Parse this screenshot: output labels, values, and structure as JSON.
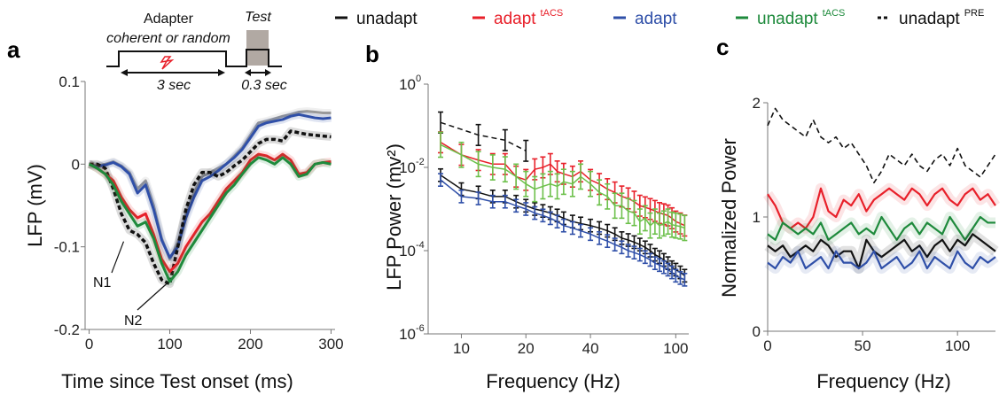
{
  "legend": [
    {
      "name": "unadapt",
      "sup": "",
      "color": "#111111",
      "dash": false
    },
    {
      "name": "adapt",
      "sup": "tACS",
      "color": "#e8202a",
      "dash": false
    },
    {
      "name": "adapt",
      "sup": "",
      "color": "#2f4fa8",
      "dash": false
    },
    {
      "name": "unadapt",
      "sup": "tACS",
      "color": "#1e8a3c",
      "dash": false
    },
    {
      "name": "unadapt",
      "sup": "PRE",
      "color": "#111111",
      "dash": true
    }
  ],
  "colors": {
    "unadapt": "#111111",
    "adapt_tacs": "#e8202a",
    "adapt": "#2f4fa8",
    "unadapt_tacs": "#1e8a3c",
    "unadapt_pre": "#111111",
    "green_bars": "#6cc04a",
    "grey_trace": "#9a9a9a",
    "test_box": "#b1a9a3"
  },
  "schematic": {
    "adapter_label": "Adapter",
    "adapter_sublabel": "coherent or random",
    "test_label": "Test",
    "adapter_duration": "3 sec",
    "test_duration": "0.3 sec",
    "stim_icon": "lightning-bolt-icon"
  },
  "chart_data": [
    {
      "panel": "a",
      "type": "line",
      "xlabel": "Time since Test onset (ms)",
      "ylabel": "LFP (mV)",
      "xlim": [
        -5,
        305
      ],
      "ylim": [
        -0.2,
        0.1
      ],
      "xticks": [
        0,
        100,
        200,
        300
      ],
      "yticks": [
        -0.2,
        -0.1,
        0,
        0.1
      ],
      "ytick_labels": [
        "-0.2",
        "-0.1",
        "0",
        "0.1"
      ],
      "annotations": [
        "N1",
        "N2"
      ],
      "annotation_points": [
        [
          45,
          -0.085
        ],
        [
          100,
          -0.14
        ]
      ],
      "x": [
        0,
        10,
        20,
        30,
        40,
        50,
        60,
        70,
        80,
        90,
        100,
        110,
        120,
        130,
        140,
        150,
        160,
        170,
        180,
        190,
        200,
        210,
        220,
        230,
        240,
        250,
        260,
        270,
        280,
        290,
        300
      ],
      "series": [
        {
          "key": "grey_trace",
          "values": [
            0.0,
            -0.002,
            0.0,
            0.003,
            -0.002,
            -0.01,
            -0.03,
            -0.02,
            -0.05,
            -0.09,
            -0.115,
            -0.095,
            -0.06,
            -0.035,
            -0.015,
            -0.01,
            -0.005,
            0.0,
            0.01,
            0.02,
            0.035,
            0.05,
            0.052,
            0.055,
            0.058,
            0.06,
            0.063,
            0.064,
            0.063,
            0.062,
            0.062
          ]
        },
        {
          "key": "adapt",
          "values": [
            0.0,
            -0.003,
            -0.001,
            0.002,
            -0.003,
            -0.012,
            -0.035,
            -0.025,
            -0.055,
            -0.092,
            -0.113,
            -0.1,
            -0.065,
            -0.04,
            -0.02,
            -0.015,
            -0.008,
            0.0,
            0.008,
            0.018,
            0.032,
            0.046,
            0.05,
            0.052,
            0.054,
            0.058,
            0.06,
            0.058,
            0.056,
            0.055,
            0.056
          ]
        },
        {
          "key": "unadapt_pre",
          "values": [
            0.0,
            0.0,
            -0.005,
            -0.03,
            -0.06,
            -0.08,
            -0.085,
            -0.095,
            -0.12,
            -0.14,
            -0.145,
            -0.1,
            -0.055,
            -0.025,
            -0.01,
            -0.01,
            -0.015,
            -0.01,
            -0.002,
            0.005,
            0.015,
            0.025,
            0.03,
            0.03,
            0.028,
            0.04,
            0.038,
            0.036,
            0.035,
            0.034,
            0.033
          ]
        },
        {
          "key": "adapt_tacs",
          "values": [
            0.0,
            -0.005,
            -0.012,
            -0.02,
            -0.04,
            -0.055,
            -0.065,
            -0.06,
            -0.085,
            -0.115,
            -0.13,
            -0.12,
            -0.1,
            -0.085,
            -0.07,
            -0.06,
            -0.045,
            -0.03,
            -0.02,
            -0.01,
            0.005,
            0.012,
            0.01,
            0.005,
            0.012,
            0.005,
            -0.012,
            -0.01,
            0.0,
            0.002,
            0.003
          ]
        },
        {
          "key": "unadapt_tacs",
          "values": [
            0.0,
            -0.005,
            -0.012,
            -0.025,
            -0.045,
            -0.06,
            -0.075,
            -0.07,
            -0.09,
            -0.12,
            -0.142,
            -0.13,
            -0.11,
            -0.095,
            -0.08,
            -0.065,
            -0.05,
            -0.035,
            -0.025,
            -0.012,
            0.0,
            0.008,
            0.005,
            0.0,
            0.008,
            0.0,
            -0.015,
            -0.012,
            0.0,
            0.002,
            0.0
          ]
        }
      ]
    },
    {
      "panel": "b",
      "type": "line",
      "xlabel": "Frequency (Hz)",
      "ylabel": "LFP Power (mv²)",
      "xscale": "log",
      "yscale": "log",
      "xlim": [
        7,
        115
      ],
      "ylim": [
        1e-06,
        1
      ],
      "xticks": [
        10,
        20,
        40,
        100
      ],
      "yticks": [
        1e-06,
        0.0001,
        0.01,
        1
      ],
      "ytick_bases": [
        "10",
        "10",
        "10",
        "10"
      ],
      "ytick_exps": [
        "-6",
        "-4",
        "-2",
        "0"
      ],
      "series": [
        {
          "key": "unadapt_pre",
          "x": [
            8,
            12,
            16,
            20
          ],
          "values": [
            0.12,
            0.06,
            0.045,
            0.025
          ],
          "err": 0.25
        },
        {
          "key": "unadapt",
          "x": [
            8,
            10,
            12,
            14,
            16,
            18,
            20,
            22,
            24,
            26,
            28,
            30,
            33,
            36,
            40,
            44,
            48,
            52,
            56,
            60,
            64,
            68,
            72,
            76,
            80,
            84,
            88,
            92,
            96,
            100,
            105,
            110
          ],
          "values": [
            0.0065,
            0.003,
            0.0025,
            0.002,
            0.002,
            0.0015,
            0.0012,
            0.001,
            0.0009,
            0.0008,
            0.0007,
            0.0006,
            0.0005,
            0.00045,
            0.0004,
            0.00035,
            0.0003,
            0.00025,
            0.0002,
            0.00018,
            0.00016,
            0.00014,
            0.00012,
            0.0001,
            8e-05,
            7e-05,
            6e-05,
            5e-05,
            4e-05,
            3.5e-05,
            3e-05,
            2.5e-05
          ],
          "err": 0.15
        },
        {
          "key": "adapt",
          "x": [
            8,
            10,
            12,
            14,
            16,
            18,
            20,
            22,
            24,
            26,
            28,
            30,
            33,
            36,
            40,
            44,
            48,
            52,
            56,
            60,
            64,
            68,
            72,
            76,
            80,
            84,
            88,
            92,
            96,
            100,
            105,
            110
          ],
          "values": [
            0.005,
            0.002,
            0.0018,
            0.0015,
            0.0015,
            0.0012,
            0.001,
            0.0008,
            0.0007,
            0.0006,
            0.0005,
            0.0004,
            0.00035,
            0.0003,
            0.00025,
            0.0002,
            0.00017,
            0.00014,
            0.00012,
            0.0001,
            9e-05,
            8e-05,
            7e-05,
            6e-05,
            5e-05,
            4.5e-05,
            4e-05,
            3.5e-05,
            3e-05,
            2.5e-05,
            2.2e-05,
            2e-05
          ],
          "err": 0.15
        },
        {
          "key": "adapt_tacs",
          "x": [
            8,
            10,
            12,
            14,
            16,
            18,
            20,
            22,
            24,
            26,
            28,
            30,
            33,
            36,
            40,
            44,
            48,
            52,
            56,
            60,
            64,
            68,
            72,
            76,
            80,
            84,
            88,
            92,
            96,
            100,
            105,
            110
          ],
          "values": [
            0.04,
            0.02,
            0.015,
            0.012,
            0.012,
            0.006,
            0.005,
            0.009,
            0.01,
            0.012,
            0.008,
            0.007,
            0.006,
            0.008,
            0.005,
            0.004,
            0.003,
            0.0025,
            0.002,
            0.0018,
            0.0015,
            0.0012,
            0.0011,
            0.001,
            0.0009,
            0.0008,
            0.00075,
            0.0007,
            0.0006,
            0.0005,
            0.00045,
            0.0004
          ],
          "err": 0.25
        },
        {
          "key": "green_bars",
          "x": [
            8,
            10,
            12,
            14,
            16,
            18,
            20,
            22,
            24,
            26,
            28,
            30,
            33,
            36,
            40,
            44,
            48,
            52,
            56,
            60,
            64,
            68,
            72,
            76,
            80,
            84,
            88,
            92,
            96,
            100,
            105,
            110
          ],
          "values": [
            0.035,
            0.02,
            0.012,
            0.01,
            0.009,
            0.006,
            0.004,
            0.003,
            0.0035,
            0.004,
            0.0035,
            0.0045,
            0.004,
            0.006,
            0.004,
            0.0025,
            0.002,
            0.0012,
            0.0012,
            0.0009,
            0.0008,
            0.0005,
            0.0006,
            0.0004,
            0.0005,
            0.0004,
            0.00045,
            0.0005,
            0.00042,
            0.0004,
            0.00038,
            0.00035
          ],
          "err": 0.3
        }
      ]
    },
    {
      "panel": "c",
      "type": "line",
      "xlabel": "Frequency (Hz)",
      "ylabel": "Normalized Power",
      "xlim": [
        0,
        120
      ],
      "ylim": [
        0,
        2
      ],
      "xticks": [
        0,
        50,
        100
      ],
      "yticks": [
        0,
        1,
        2
      ],
      "x": [
        0,
        4,
        8,
        12,
        16,
        20,
        24,
        28,
        32,
        36,
        40,
        44,
        48,
        52,
        56,
        60,
        64,
        68,
        72,
        76,
        80,
        84,
        88,
        92,
        96,
        100,
        104,
        108,
        112,
        116,
        120
      ],
      "series": [
        {
          "key": "unadapt_pre",
          "values": [
            1.8,
            1.95,
            1.85,
            1.8,
            1.75,
            1.7,
            1.85,
            1.7,
            1.65,
            1.7,
            1.6,
            1.65,
            1.55,
            1.45,
            1.3,
            1.4,
            1.55,
            1.5,
            1.45,
            1.55,
            1.45,
            1.4,
            1.5,
            1.55,
            1.45,
            1.6,
            1.45,
            1.4,
            1.35,
            1.45,
            1.55
          ]
        },
        {
          "key": "adapt_tacs",
          "values": [
            1.2,
            1.1,
            0.95,
            0.9,
            0.95,
            0.9,
            1.0,
            1.25,
            1.05,
            1.0,
            1.15,
            1.1,
            1.2,
            1.05,
            1.15,
            1.2,
            1.25,
            1.2,
            1.15,
            1.25,
            1.2,
            1.1,
            1.2,
            1.25,
            1.15,
            1.1,
            1.2,
            1.25,
            1.15,
            1.2,
            1.1
          ]
        },
        {
          "key": "unadapt_tacs",
          "values": [
            0.85,
            0.8,
            0.95,
            0.9,
            0.85,
            0.9,
            0.85,
            0.95,
            0.8,
            0.85,
            0.9,
            0.95,
            0.85,
            0.9,
            0.85,
            1.0,
            0.9,
            0.8,
            0.9,
            0.95,
            0.85,
            0.95,
            0.9,
            0.85,
            1.0,
            0.9,
            0.8,
            0.9,
            1.0,
            0.95,
            0.95
          ]
        },
        {
          "key": "unadapt",
          "values": [
            0.75,
            0.7,
            0.75,
            0.65,
            0.7,
            0.75,
            0.7,
            0.8,
            0.75,
            0.65,
            0.7,
            0.7,
            0.55,
            0.8,
            0.7,
            0.65,
            0.7,
            0.75,
            0.8,
            0.7,
            0.75,
            0.65,
            0.75,
            0.8,
            0.7,
            0.8,
            0.75,
            0.85,
            0.8,
            0.75,
            0.7
          ]
        },
        {
          "key": "adapt",
          "values": [
            0.6,
            0.55,
            0.65,
            0.6,
            0.7,
            0.55,
            0.6,
            0.65,
            0.55,
            0.7,
            0.6,
            0.6,
            0.55,
            0.6,
            0.7,
            0.55,
            0.6,
            0.65,
            0.55,
            0.6,
            0.7,
            0.55,
            0.65,
            0.6,
            0.55,
            0.7,
            0.6,
            0.55,
            0.65,
            0.6,
            0.65
          ]
        }
      ]
    }
  ]
}
